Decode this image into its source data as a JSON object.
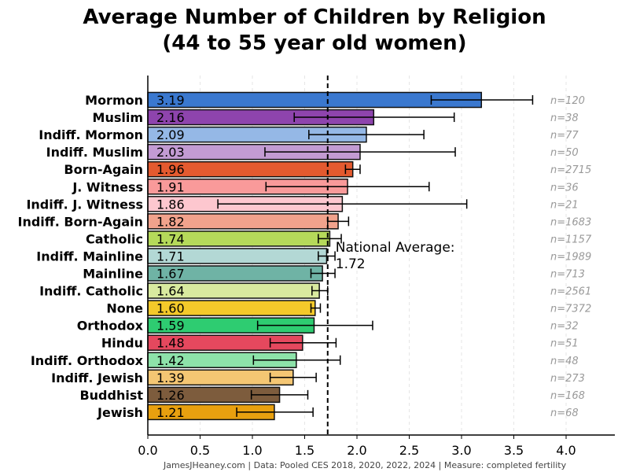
{
  "title_line1": "Average Number of Children by Religion",
  "title_line2": "(44 to 55 year old women)",
  "credit": "JamesJHeaney.com | Data: Pooled CES 2018, 2020, 2022, 2024 | Measure: completed fertility",
  "chart_data": {
    "type": "bar",
    "orientation": "horizontal",
    "xlim": [
      0,
      4.45
    ],
    "xticks": [
      "0.0",
      "0.5",
      "1.0",
      "1.5",
      "2.0",
      "2.5",
      "3.0",
      "3.5",
      "4.0"
    ],
    "grid": "vertical dashed",
    "reference_line": {
      "value": 1.72,
      "label_line1": "National Average:",
      "label_line2": "1.72"
    },
    "bars": [
      {
        "label": "Mormon",
        "value": 3.19,
        "value_label": "3.19",
        "err_low": 2.71,
        "err_high": 3.68,
        "n": "n=120",
        "color": "#3a78cf"
      },
      {
        "label": "Muslim",
        "value": 2.16,
        "value_label": "2.16",
        "err_low": 1.4,
        "err_high": 2.93,
        "n": "n=38",
        "color": "#8e44ad"
      },
      {
        "label": "Indiff. Mormon",
        "value": 2.09,
        "value_label": "2.09",
        "err_low": 1.54,
        "err_high": 2.64,
        "n": "n=77",
        "color": "#95b8e6"
      },
      {
        "label": "Indiff. Muslim",
        "value": 2.03,
        "value_label": "2.03",
        "err_low": 1.12,
        "err_high": 2.94,
        "n": "n=50",
        "color": "#c39bd3"
      },
      {
        "label": "Born-Again",
        "value": 1.96,
        "value_label": "1.96",
        "err_low": 1.89,
        "err_high": 2.03,
        "n": "n=2715",
        "color": "#e45a2f"
      },
      {
        "label": "J. Witness",
        "value": 1.91,
        "value_label": "1.91",
        "err_low": 1.13,
        "err_high": 2.69,
        "n": "n=36",
        "color": "#f99a9a"
      },
      {
        "label": "Indiff. J. Witness",
        "value": 1.86,
        "value_label": "1.86",
        "err_low": 0.67,
        "err_high": 3.05,
        "n": "n=21",
        "color": "#fdc7cf"
      },
      {
        "label": "Indiff. Born-Again",
        "value": 1.82,
        "value_label": "1.82",
        "err_low": 1.72,
        "err_high": 1.92,
        "n": "n=1683",
        "color": "#f1a28c"
      },
      {
        "label": "Catholic",
        "value": 1.74,
        "value_label": "1.74",
        "err_low": 1.63,
        "err_high": 1.85,
        "n": "n=1157",
        "color": "#b5d95a"
      },
      {
        "label": "Indiff. Mainline",
        "value": 1.71,
        "value_label": "1.71",
        "err_low": 1.63,
        "err_high": 1.79,
        "n": "n=1989",
        "color": "#b3d8d5"
      },
      {
        "label": "Mainline",
        "value": 1.67,
        "value_label": "1.67",
        "err_low": 1.56,
        "err_high": 1.79,
        "n": "n=713",
        "color": "#6fb3a5"
      },
      {
        "label": "Indiff. Catholic",
        "value": 1.64,
        "value_label": "1.64",
        "err_low": 1.57,
        "err_high": 1.72,
        "n": "n=2561",
        "color": "#d9ea9f"
      },
      {
        "label": "None",
        "value": 1.6,
        "value_label": "1.60",
        "err_low": 1.56,
        "err_high": 1.65,
        "n": "n=7372",
        "color": "#f4c92a"
      },
      {
        "label": "Orthodox",
        "value": 1.59,
        "value_label": "1.59",
        "err_low": 1.05,
        "err_high": 2.15,
        "n": "n=32",
        "color": "#2ecc71"
      },
      {
        "label": "Hindu",
        "value": 1.48,
        "value_label": "1.48",
        "err_low": 1.17,
        "err_high": 1.8,
        "n": "n=51",
        "color": "#e5485e"
      },
      {
        "label": "Indiff. Orthodox",
        "value": 1.42,
        "value_label": "1.42",
        "err_low": 1.01,
        "err_high": 1.84,
        "n": "n=48",
        "color": "#8de2a9"
      },
      {
        "label": "Indiff. Jewish",
        "value": 1.39,
        "value_label": "1.39",
        "err_low": 1.17,
        "err_high": 1.61,
        "n": "n=273",
        "color": "#f4c673"
      },
      {
        "label": "Buddhist",
        "value": 1.26,
        "value_label": "1.26",
        "err_low": 0.99,
        "err_high": 1.53,
        "n": "n=168",
        "color": "#7d5c3d"
      },
      {
        "label": "Jewish",
        "value": 1.21,
        "value_label": "1.21",
        "err_low": 0.85,
        "err_high": 1.58,
        "n": "n=68",
        "color": "#e8a00f"
      }
    ]
  }
}
